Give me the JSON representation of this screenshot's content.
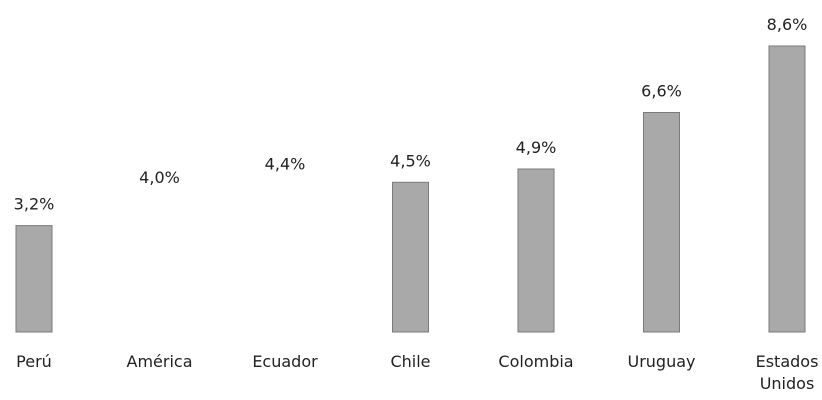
{
  "chart_data": {
    "type": "bar",
    "categories": [
      "Perú",
      "América",
      "Ecuador",
      "Chile",
      "Colombia",
      "Uruguay",
      "Estados Unidos"
    ],
    "category_lines": [
      [
        "Perú"
      ],
      [
        "América"
      ],
      [
        "Ecuador"
      ],
      [
        "Chile"
      ],
      [
        "Colombia"
      ],
      [
        "Uruguay"
      ],
      [
        "Estados",
        "Unidos"
      ]
    ],
    "values": [
      3.2,
      4.0,
      4.4,
      4.5,
      4.9,
      6.6,
      8.6
    ],
    "value_labels": [
      "3,2%",
      "4,0%",
      "4,4%",
      "4,5%",
      "4,9%",
      "6,6%",
      "8,6%"
    ],
    "bar_visible": [
      true,
      false,
      false,
      true,
      true,
      true,
      true
    ],
    "bar_color": "#a9a9a9",
    "ylim": [
      0,
      8.6
    ],
    "grid": false,
    "legend": "none"
  }
}
